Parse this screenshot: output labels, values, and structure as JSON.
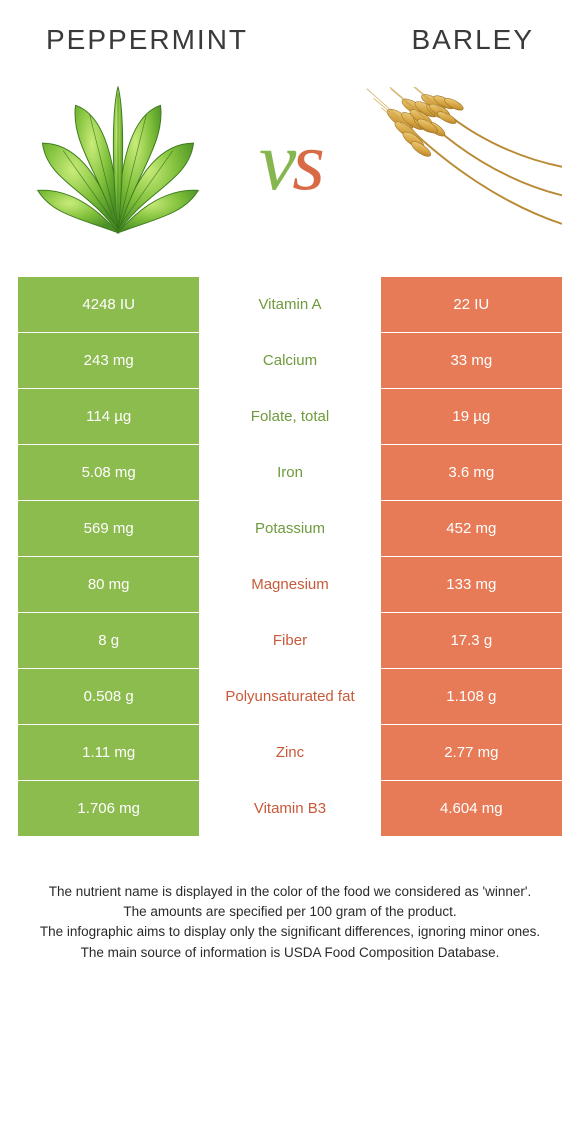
{
  "titles": {
    "left": "Peppermint",
    "right": "Barley"
  },
  "vs_colors": {
    "v": "#86b64f",
    "s": "#d86a46"
  },
  "colors": {
    "left_cell": "#8cbb4e",
    "right_cell": "#e87b57",
    "mid_green": "#6f9a3d",
    "mid_orange": "#c85a3a"
  },
  "rows": [
    {
      "left": "4248 IU",
      "name": "Vitamin A",
      "right": "22 IU",
      "winner": "left"
    },
    {
      "left": "243 mg",
      "name": "Calcium",
      "right": "33 mg",
      "winner": "left"
    },
    {
      "left": "114 µg",
      "name": "Folate, total",
      "right": "19 µg",
      "winner": "left"
    },
    {
      "left": "5.08 mg",
      "name": "Iron",
      "right": "3.6 mg",
      "winner": "left"
    },
    {
      "left": "569 mg",
      "name": "Potassium",
      "right": "452 mg",
      "winner": "left"
    },
    {
      "left": "80 mg",
      "name": "Magnesium",
      "right": "133 mg",
      "winner": "right"
    },
    {
      "left": "8 g",
      "name": "Fiber",
      "right": "17.3 g",
      "winner": "right"
    },
    {
      "left": "0.508 g",
      "name": "Polyunsaturated fat",
      "right": "1.108 g",
      "winner": "right"
    },
    {
      "left": "1.11 mg",
      "name": "Zinc",
      "right": "2.77 mg",
      "winner": "right"
    },
    {
      "left": "1.706 mg",
      "name": "Vitamin B3",
      "right": "4.604 mg",
      "winner": "right"
    }
  ],
  "footnotes": [
    "The nutrient name is displayed in the color of the food we considered as 'winner'.",
    "The amounts are specified per 100 gram of the product.",
    "The infographic aims to display only the significant differences, ignoring minor ones.",
    "The main source of information is USDA Food Composition Database."
  ]
}
